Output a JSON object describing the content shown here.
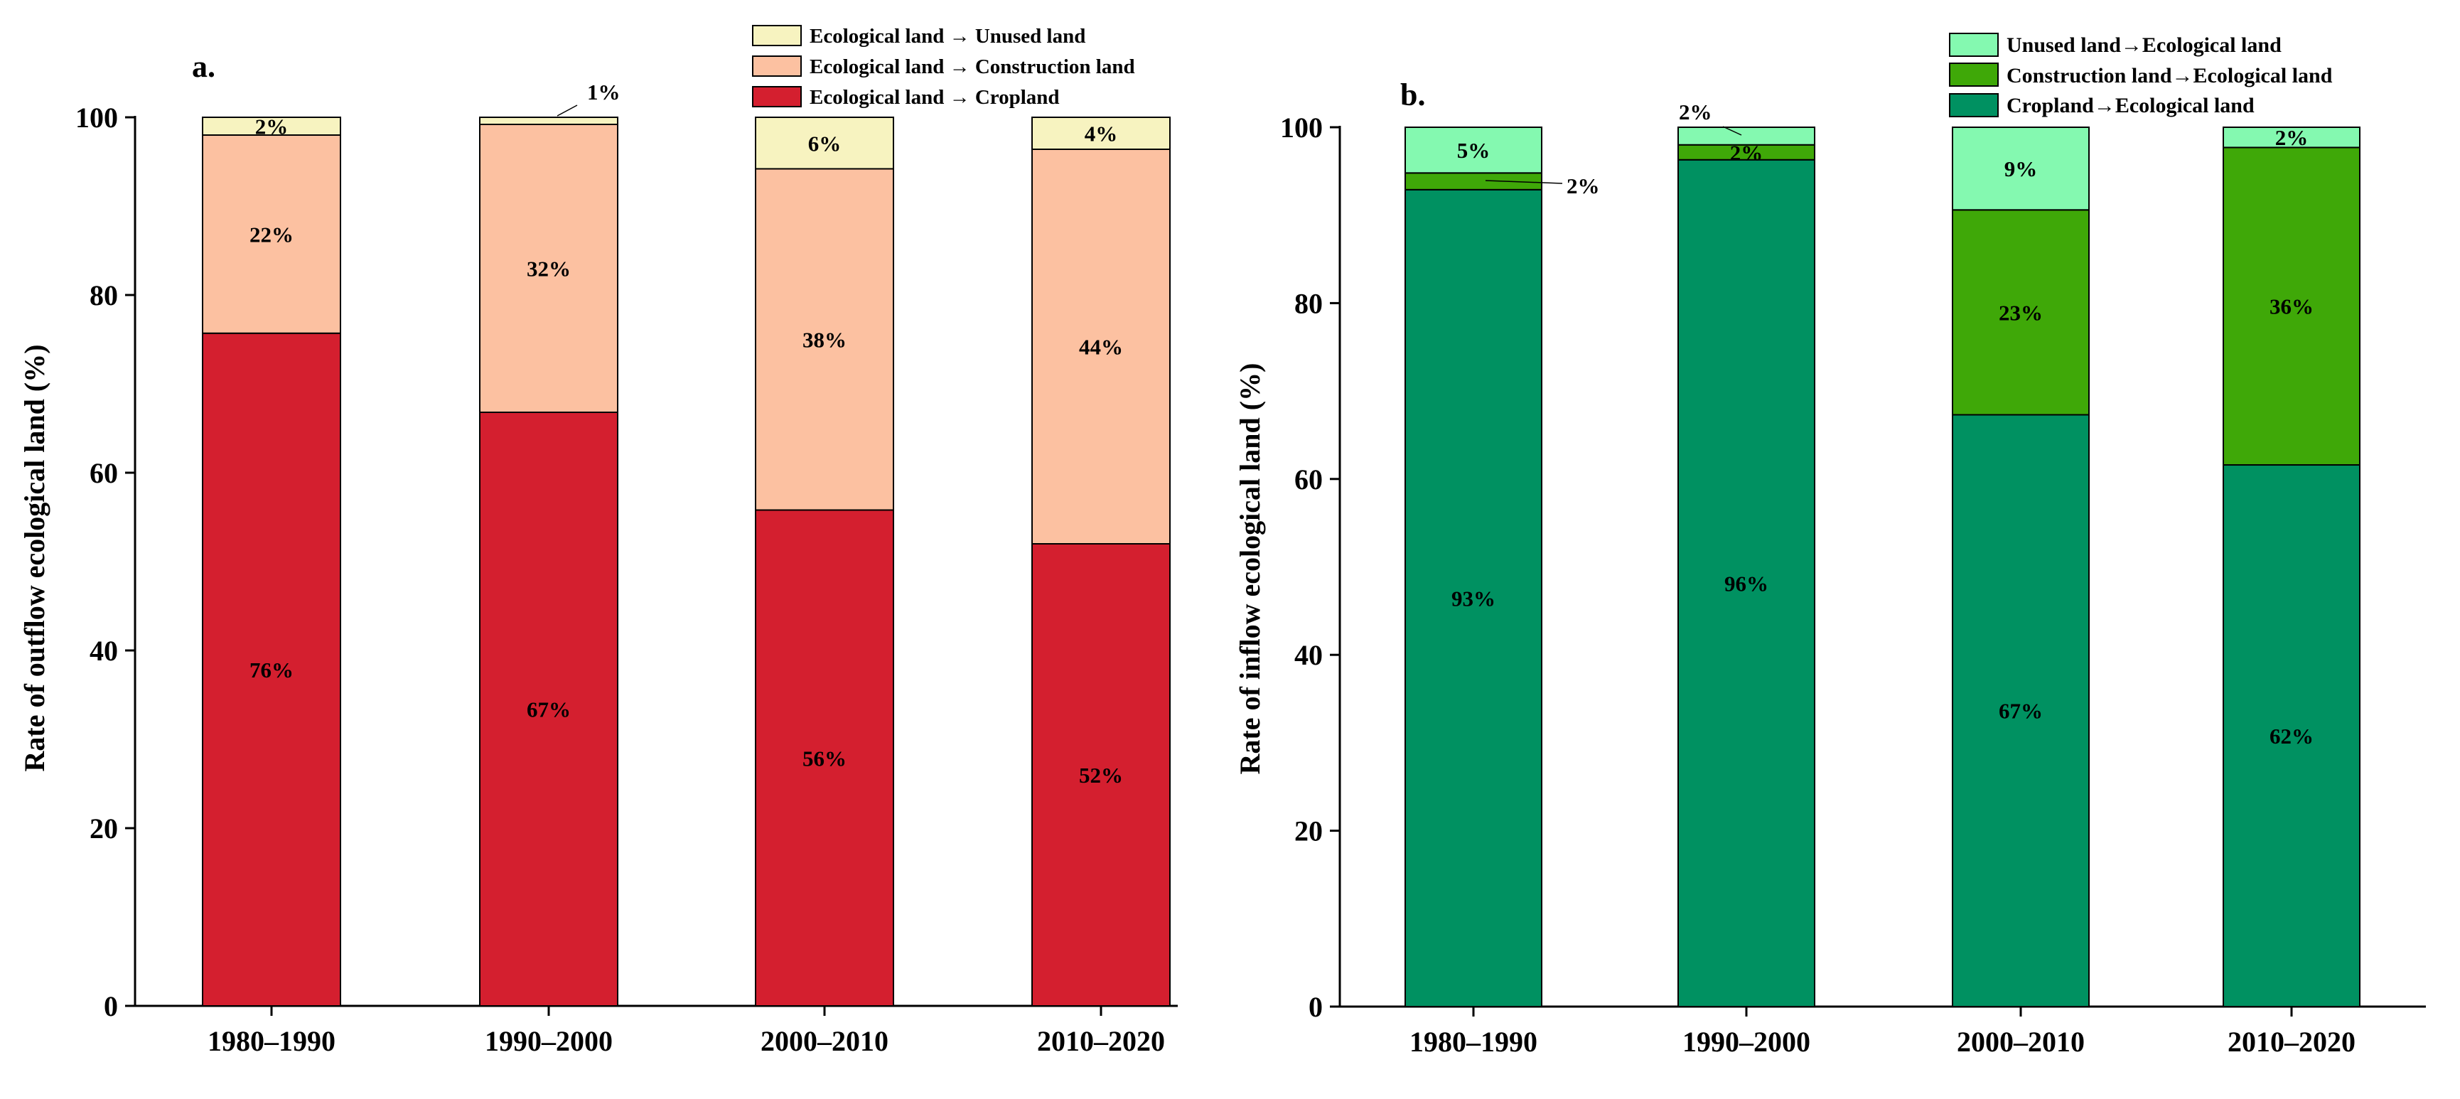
{
  "chart_data": [
    {
      "type": "bar",
      "stacked": true,
      "panel_label": "a.",
      "ylabel": "Rate of outflow ecological land (%)",
      "xlabel": "",
      "ylim": [
        0,
        100
      ],
      "y_ticks": [
        "0",
        "20",
        "40",
        "60",
        "80",
        "100"
      ],
      "categories": [
        "1980–1990",
        "1990–2000",
        "2000–2010",
        "2010–2020"
      ],
      "legend_position": "top-right",
      "series": [
        {
          "name": "Ecological land → Cropland",
          "color": "#d41f2f",
          "values": [
            75.7,
            66.8,
            55.8,
            52.0
          ],
          "labels": [
            "76%",
            "67%",
            "56%",
            "52%"
          ]
        },
        {
          "name": "Ecological land → Construction land",
          "color": "#fcc1a1",
          "values": [
            22.3,
            32.4,
            38.4,
            44.4
          ],
          "labels": [
            "22%",
            "32%",
            "38%",
            "44%"
          ]
        },
        {
          "name": "Ecological land → Unused land",
          "color": "#f7f3c0",
          "values": [
            2.0,
            0.8,
            5.8,
            3.6
          ],
          "labels": [
            "2%",
            "1%",
            "6%",
            "4%"
          ]
        }
      ]
    },
    {
      "type": "bar",
      "stacked": true,
      "panel_label": "b.",
      "ylabel": "Rate of inflow ecological land (%)",
      "xlabel": "",
      "ylim": [
        0,
        100
      ],
      "y_ticks": [
        "0",
        "20",
        "40",
        "60",
        "80",
        "100"
      ],
      "categories": [
        "1980–1990",
        "1990–2000",
        "2000–2010",
        "2010–2020"
      ],
      "legend_position": "top-right",
      "series": [
        {
          "name": "Cropland→Ecological land",
          "color": "#009161",
          "values": [
            92.9,
            96.3,
            67.3,
            61.6
          ],
          "labels": [
            "93%",
            "96%",
            "67%",
            "62%"
          ]
        },
        {
          "name": "Construction land→Ecological land",
          "color": "#3fa808",
          "values": [
            1.9,
            1.7,
            23.3,
            36.1
          ],
          "labels": [
            "2%",
            "2%",
            "23%",
            "36%"
          ]
        },
        {
          "name": "Unused land→Ecological land",
          "color": "#84f9b0",
          "values": [
            5.2,
            2.0,
            9.4,
            2.3
          ],
          "labels": [
            "5%",
            "2%",
            "9%",
            "2%"
          ]
        }
      ]
    }
  ]
}
